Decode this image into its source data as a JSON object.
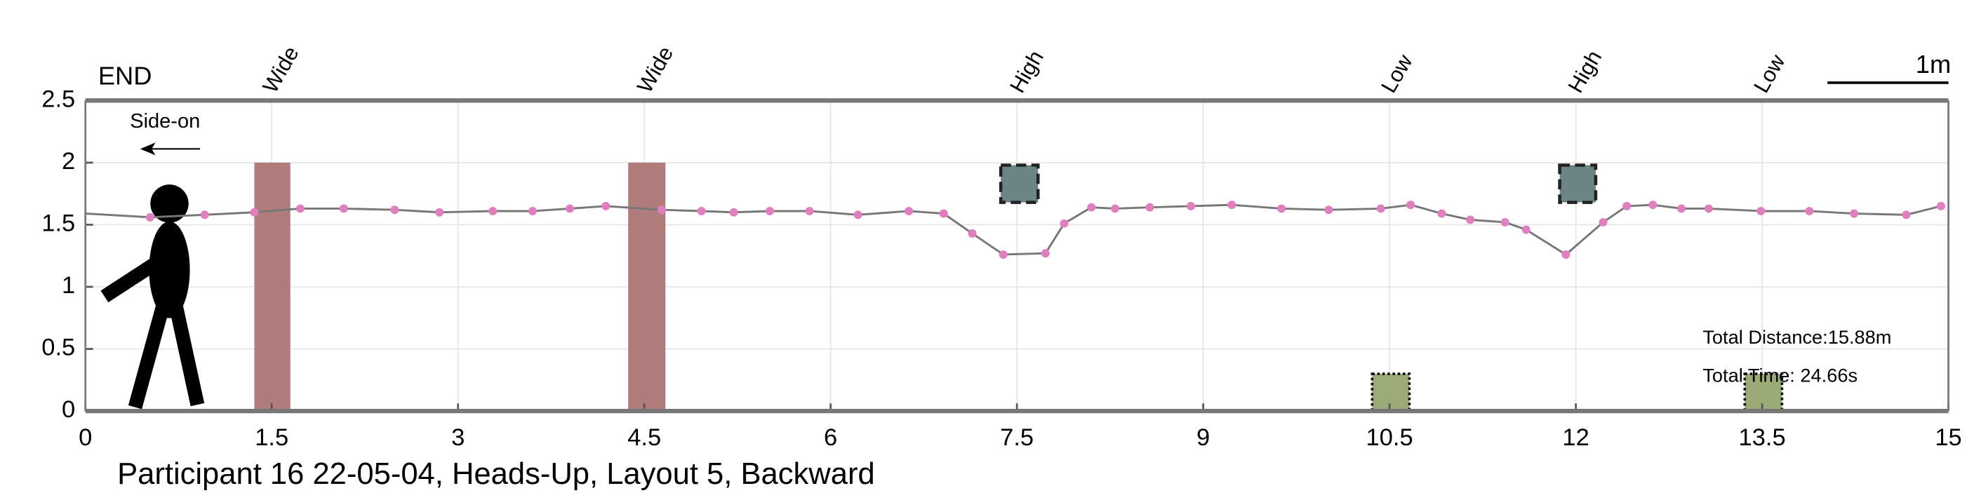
{
  "chart_data": {
    "type": "line",
    "title": "Participant 16 22-05-04, Heads-Up, Layout 5, Backward",
    "end_label": "END",
    "view_label": "Side-on",
    "scale_label": "1m",
    "distance_text": "Total Distance:15.88m",
    "time_text": "Total Time: 24.66s",
    "xlim": [
      0,
      15
    ],
    "ylim": [
      0,
      2.5
    ],
    "xticks": [
      0,
      1.5,
      3,
      4.5,
      6,
      7.5,
      9,
      10.5,
      12,
      13.5,
      15
    ],
    "yticks": [
      0,
      0.5,
      1,
      1.5,
      2,
      2.5
    ],
    "grid": true,
    "series": [
      {
        "color": "#777777",
        "marker_color": "#e07fbf",
        "x": [
          0,
          0.52,
          0.96,
          1.36,
          1.73,
          2.08,
          2.49,
          2.85,
          3.28,
          3.6,
          3.9,
          4.19,
          4.64,
          4.96,
          5.22,
          5.51,
          5.83,
          6.22,
          6.63,
          6.91,
          7.14,
          7.39,
          7.73,
          7.88,
          8.1,
          8.29,
          8.57,
          8.9,
          9.23,
          9.63,
          10.01,
          10.43,
          10.67,
          10.92,
          11.15,
          11.43,
          11.6,
          11.92,
          12.22,
          12.41,
          12.62,
          12.85,
          13.07,
          13.49,
          13.88,
          14.24,
          14.66,
          14.94
        ],
        "values": [
          1.59,
          1.56,
          1.58,
          1.6,
          1.63,
          1.63,
          1.62,
          1.6,
          1.61,
          1.61,
          1.63,
          1.65,
          1.62,
          1.61,
          1.6,
          1.61,
          1.61,
          1.58,
          1.61,
          1.59,
          1.43,
          1.26,
          1.27,
          1.51,
          1.64,
          1.63,
          1.64,
          1.65,
          1.66,
          1.63,
          1.62,
          1.63,
          1.66,
          1.59,
          1.54,
          1.52,
          1.46,
          1.26,
          1.52,
          1.65,
          1.66,
          1.63,
          1.63,
          1.61,
          1.61,
          1.59,
          1.58,
          1.65
        ]
      }
    ],
    "obstacles": [
      {
        "label": "Wide",
        "x0": 1.36,
        "x1": 1.65,
        "y0": 0,
        "y1": 2,
        "color": "#b07c7c"
      },
      {
        "label": "Wide",
        "x0": 4.37,
        "x1": 4.67,
        "y0": 0,
        "y1": 2,
        "color": "#b07c7c"
      },
      {
        "label": "High",
        "x0": 7.37,
        "x1": 7.67,
        "y0": 1.68,
        "y1": 1.98,
        "color": "#6b8585"
      },
      {
        "label": "Low",
        "x0": 10.36,
        "x1": 10.66,
        "y0": 0,
        "y1": 0.3,
        "color": "#9aab78"
      },
      {
        "label": "High",
        "x0": 11.87,
        "x1": 12.16,
        "y0": 1.68,
        "y1": 1.98,
        "color": "#6b8585"
      },
      {
        "label": "Low",
        "x0": 13.36,
        "x1": 13.66,
        "y0": 0,
        "y1": 0.3,
        "color": "#9aab78"
      }
    ]
  }
}
